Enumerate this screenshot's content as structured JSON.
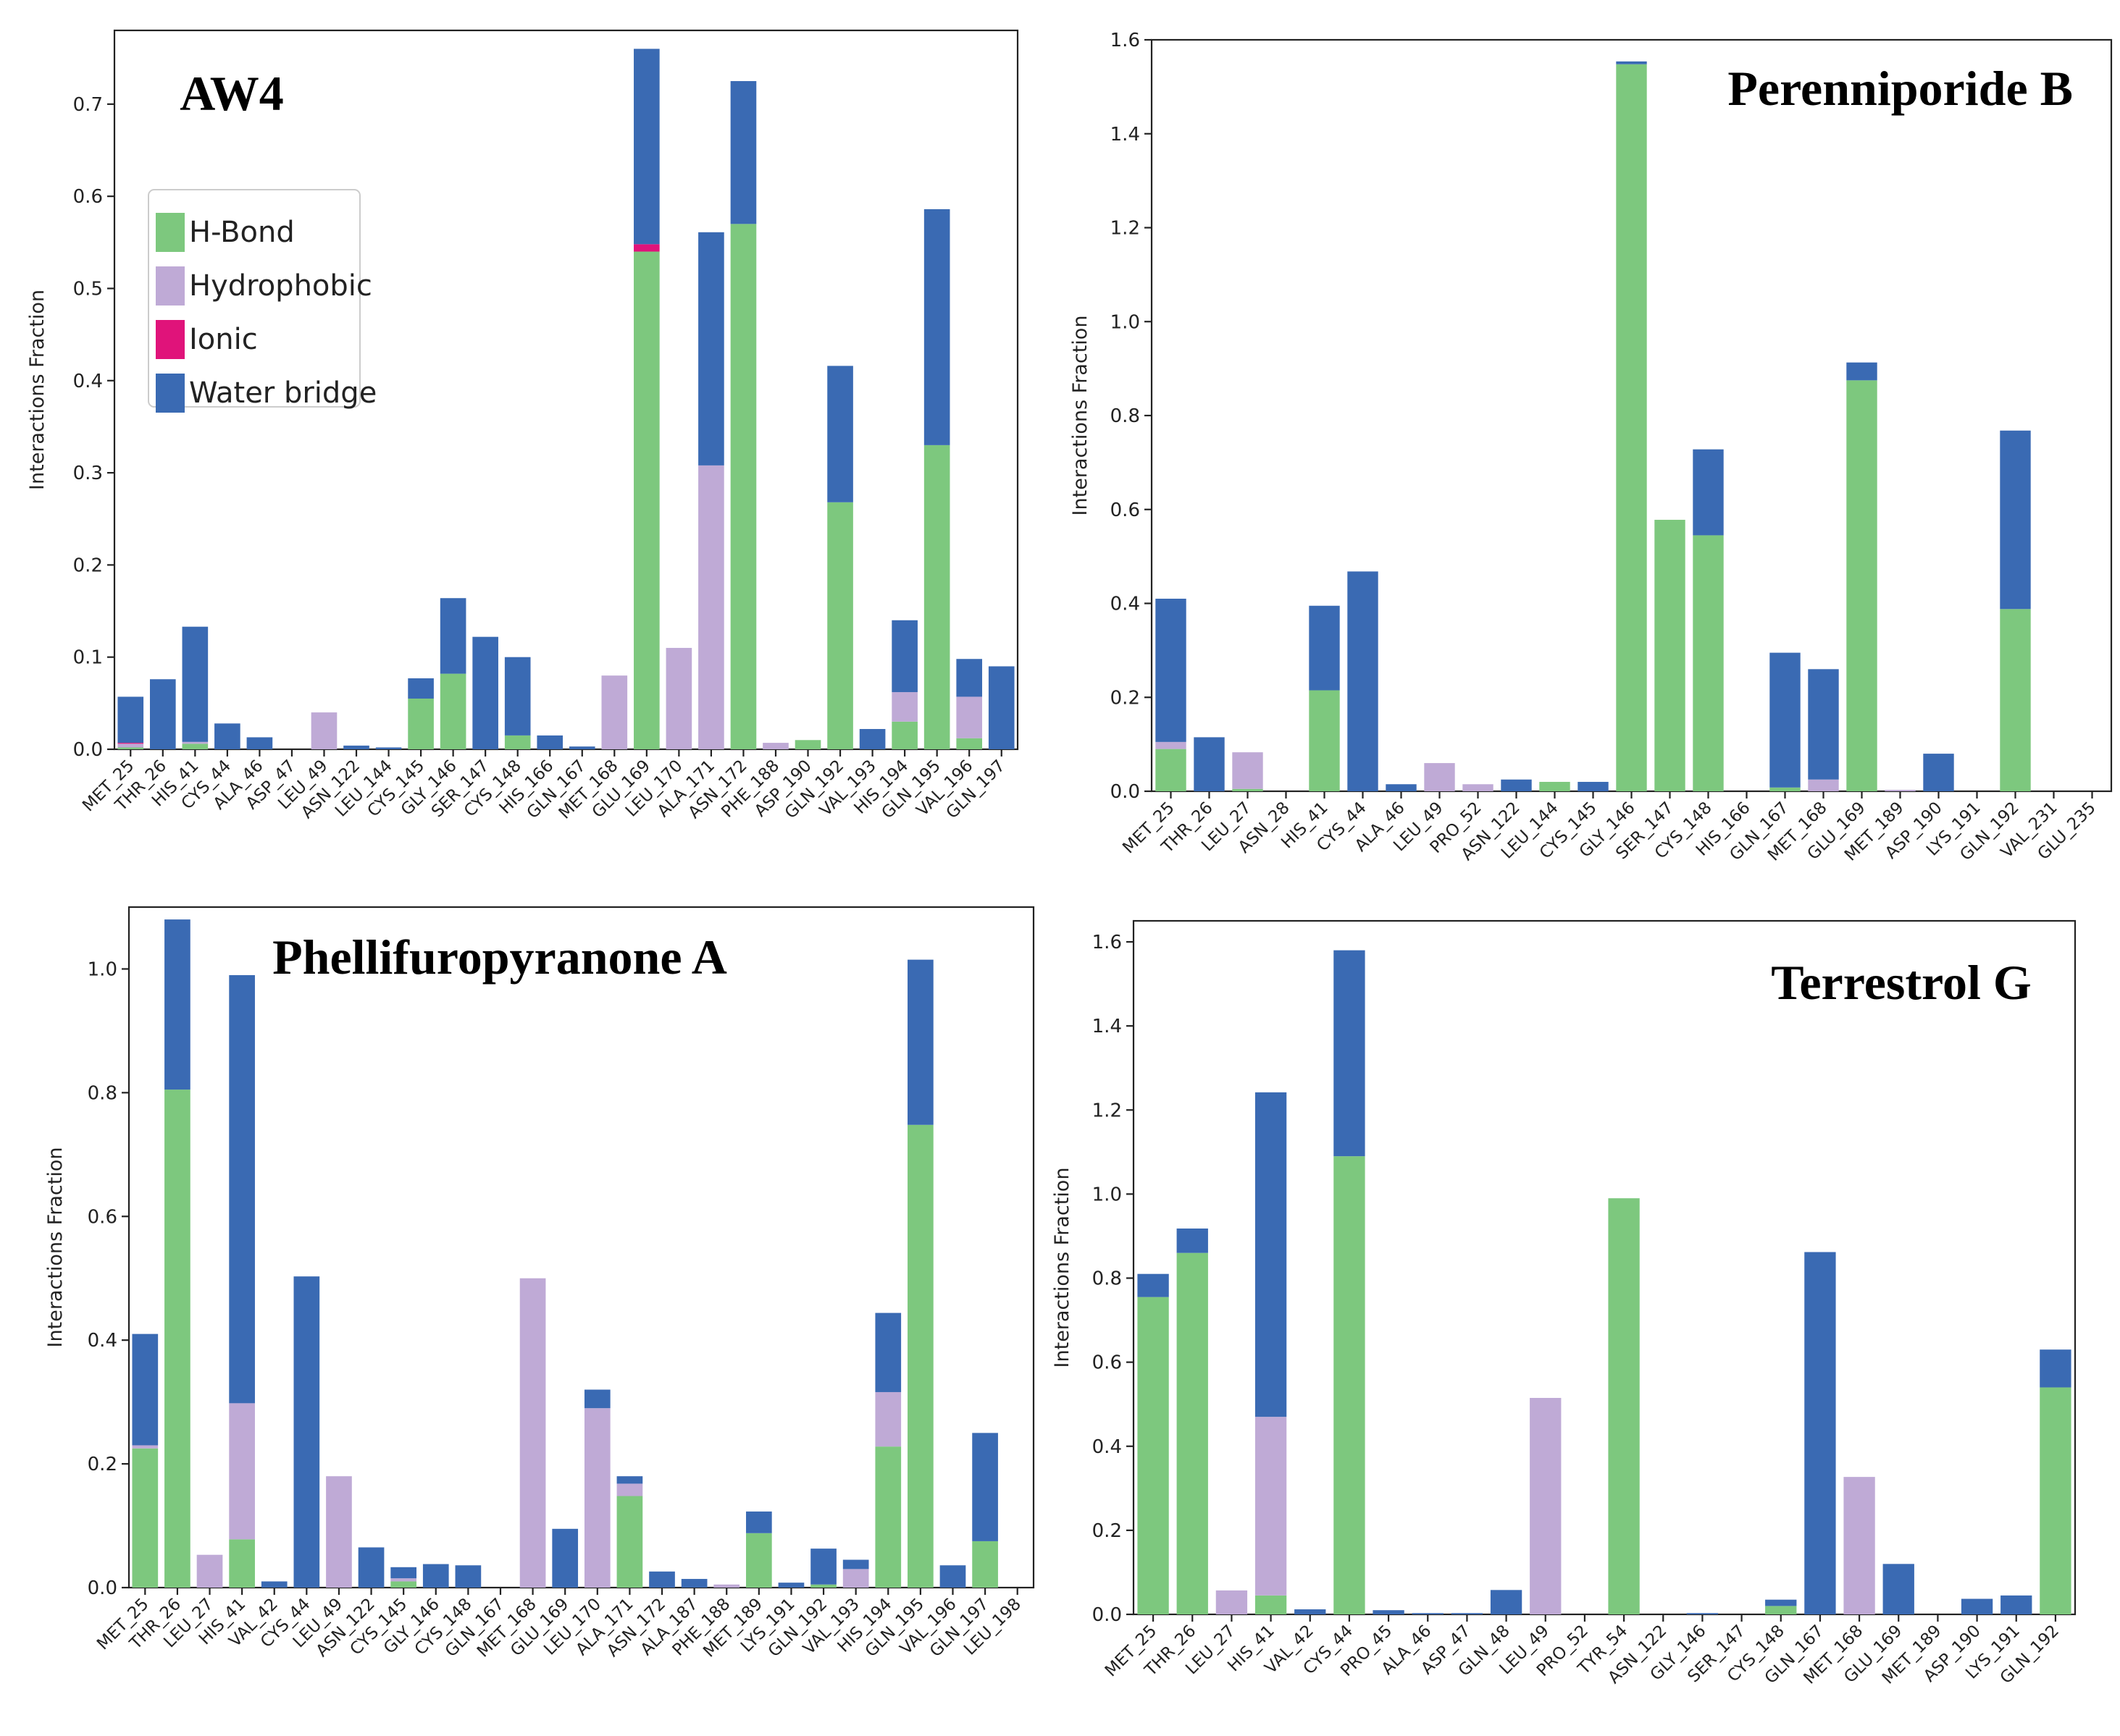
{
  "colors": {
    "hbond": "#7dc87e",
    "hydrophobic": "#bfaad6",
    "ionic": "#e0137a",
    "water": "#3a6ab3"
  },
  "legend": [
    {
      "key": "hbond",
      "label": "H-Bond"
    },
    {
      "key": "hydrophobic",
      "label": "Hydrophobic"
    },
    {
      "key": "ionic",
      "label": "Ionic"
    },
    {
      "key": "water",
      "label": "Water bridge"
    }
  ],
  "chart_data": [
    {
      "type": "bar",
      "stacked": true,
      "title": "AW4",
      "ylabel": "Interactions Fraction",
      "ylim": [
        0,
        0.78
      ],
      "yticks": [
        0.0,
        0.1,
        0.2,
        0.3,
        0.4,
        0.5,
        0.6,
        0.7
      ],
      "ytick_labels": [
        "0.0",
        "0.1",
        "0.2",
        "0.3",
        "0.4",
        "0.5",
        "0.6",
        "0.7"
      ],
      "legend_position": "upper-left",
      "categories": [
        "MET_25",
        "THR_26",
        "HIS_41",
        "CYS_44",
        "ALA_46",
        "ASP_47",
        "LEU_49",
        "ASN_122",
        "LEU_144",
        "CYS_145",
        "GLY_146",
        "SER_147",
        "CYS_148",
        "HIS_166",
        "GLN_167",
        "MET_168",
        "GLU_169",
        "LEU_170",
        "ALA_171",
        "ASN_172",
        "PHE_188",
        "ASP_190",
        "GLN_192",
        "VAL_193",
        "HIS_194",
        "GLN_195",
        "VAL_196",
        "GLN_197"
      ],
      "series": [
        {
          "name": "H-Bond",
          "key": "hbond",
          "values": [
            0.002,
            0,
            0.006,
            0,
            0,
            0,
            0,
            0,
            0,
            0.055,
            0.082,
            0,
            0.015,
            0,
            0,
            0,
            0.54,
            0,
            0,
            0.57,
            0,
            0.01,
            0.268,
            0,
            0.03,
            0.33,
            0.012,
            0
          ]
        },
        {
          "name": "Hydrophobic",
          "key": "hydrophobic",
          "values": [
            0.004,
            0,
            0.002,
            0,
            0,
            0,
            0.04,
            0,
            0,
            0,
            0,
            0,
            0,
            0,
            0,
            0.08,
            0,
            0.11,
            0.308,
            0,
            0.007,
            0,
            0,
            0,
            0.032,
            0,
            0.045,
            0
          ]
        },
        {
          "name": "Ionic",
          "key": "ionic",
          "values": [
            0.001,
            0,
            0,
            0,
            0,
            0,
            0,
            0,
            0,
            0,
            0,
            0,
            0,
            0,
            0,
            0,
            0.008,
            0,
            0,
            0,
            0,
            0,
            0,
            0,
            0,
            0,
            0,
            0
          ]
        },
        {
          "name": "Water bridge",
          "key": "water",
          "values": [
            0.05,
            0.076,
            0.125,
            0.028,
            0.013,
            0,
            0,
            0.004,
            0.002,
            0.022,
            0.082,
            0.122,
            0.085,
            0.015,
            0.003,
            0,
            0.212,
            0,
            0.253,
            0.155,
            0,
            0,
            0.148,
            0.022,
            0.078,
            0.256,
            0.041,
            0.09
          ]
        }
      ]
    },
    {
      "type": "bar",
      "stacked": true,
      "title": "Perenniporide B",
      "ylabel": "Interactions Fraction",
      "ylim": [
        0,
        1.6
      ],
      "yticks": [
        0.0,
        0.2,
        0.4,
        0.6,
        0.8,
        1.0,
        1.2,
        1.4,
        1.6
      ],
      "ytick_labels": [
        "0.0",
        "0.2",
        "0.4",
        "0.6",
        "0.8",
        "1.0",
        "1.2",
        "1.4",
        "1.6"
      ],
      "categories": [
        "MET_25",
        "THR_26",
        "LEU_27",
        "ASN_28",
        "HIS_41",
        "CYS_44",
        "ALA_46",
        "LEU_49",
        "PRO_52",
        "ASN_122",
        "LEU_144",
        "CYS_145",
        "GLY_146",
        "SER_147",
        "CYS_148",
        "HIS_166",
        "GLN_167",
        "MET_168",
        "GLU_169",
        "MET_189",
        "ASP_190",
        "LYS_191",
        "GLN_192",
        "VAL_231",
        "GLU_235"
      ],
      "series": [
        {
          "name": "H-Bond",
          "key": "hbond",
          "values": [
            0.09,
            0,
            0.005,
            0,
            0.215,
            0,
            0,
            0,
            0,
            0,
            0.02,
            0,
            1.548,
            0.578,
            0.545,
            0,
            0.008,
            0,
            0.875,
            0,
            0,
            0,
            0.388,
            0,
            0
          ]
        },
        {
          "name": "Hydrophobic",
          "key": "hydrophobic",
          "values": [
            0.015,
            0,
            0.078,
            0,
            0,
            0,
            0,
            0.06,
            0.015,
            0,
            0,
            0,
            0,
            0,
            0,
            0,
            0,
            0.025,
            0,
            0.003,
            0,
            0,
            0,
            0,
            0
          ]
        },
        {
          "name": "Ionic",
          "key": "ionic",
          "values": [
            0,
            0,
            0,
            0,
            0,
            0,
            0,
            0,
            0,
            0,
            0,
            0,
            0,
            0,
            0,
            0,
            0,
            0,
            0,
            0,
            0,
            0,
            0,
            0,
            0
          ]
        },
        {
          "name": "Water bridge",
          "key": "water",
          "values": [
            0.305,
            0.115,
            0,
            0,
            0.18,
            0.468,
            0.015,
            0,
            0,
            0.025,
            0,
            0.02,
            0.006,
            0,
            0.183,
            0,
            0.287,
            0.235,
            0.038,
            0,
            0.08,
            0,
            0.38,
            0,
            0
          ]
        }
      ]
    },
    {
      "type": "bar",
      "stacked": true,
      "title": "Phellifuropyranone A",
      "ylabel": "Interactions Fraction",
      "ylim": [
        0,
        1.1
      ],
      "yticks": [
        0.0,
        0.2,
        0.4,
        0.6,
        0.8,
        1.0
      ],
      "ytick_labels": [
        "0.0",
        "0.2",
        "0.4",
        "0.6",
        "0.8",
        "1.0"
      ],
      "categories": [
        "MET_25",
        "THR_26",
        "LEU_27",
        "HIS_41",
        "VAL_42",
        "CYS_44",
        "LEU_49",
        "ASN_122",
        "CYS_145",
        "GLY_146",
        "CYS_148",
        "GLN_167",
        "MET_168",
        "GLU_169",
        "LEU_170",
        "ALA_171",
        "ASN_172",
        "ALA_187",
        "PHE_188",
        "MET_189",
        "LYS_191",
        "GLN_192",
        "VAL_193",
        "HIS_194",
        "GLN_195",
        "VAL_196",
        "GLN_197",
        "LEU_198"
      ],
      "series": [
        {
          "name": "H-Bond",
          "key": "hbond",
          "values": [
            0.225,
            0.805,
            0,
            0.078,
            0,
            0,
            0,
            0,
            0.01,
            0,
            0,
            0,
            0,
            0,
            0,
            0.148,
            0,
            0,
            0,
            0.088,
            0,
            0.005,
            0,
            0.228,
            0.748,
            0,
            0.075,
            0
          ]
        },
        {
          "name": "Hydrophobic",
          "key": "hydrophobic",
          "values": [
            0.005,
            0,
            0.053,
            0.22,
            0,
            0,
            0.18,
            0,
            0.005,
            0,
            0,
            0,
            0.5,
            0,
            0.29,
            0.02,
            0,
            0,
            0.005,
            0,
            0,
            0,
            0.03,
            0.088,
            0,
            0,
            0,
            0
          ]
        },
        {
          "name": "Ionic",
          "key": "ionic",
          "values": [
            0,
            0,
            0,
            0,
            0,
            0,
            0,
            0,
            0,
            0,
            0,
            0,
            0,
            0,
            0,
            0,
            0,
            0,
            0,
            0,
            0,
            0,
            0,
            0,
            0,
            0,
            0,
            0
          ]
        },
        {
          "name": "Water bridge",
          "key": "water",
          "values": [
            0.18,
            0.275,
            0,
            0.692,
            0.01,
            0.503,
            0,
            0.065,
            0.018,
            0.038,
            0.036,
            0,
            0,
            0.095,
            0.03,
            0.012,
            0.026,
            0.014,
            0,
            0.035,
            0.008,
            0.058,
            0.015,
            0.128,
            0.267,
            0.036,
            0.175,
            0
          ]
        }
      ]
    },
    {
      "type": "bar",
      "stacked": true,
      "title": "Terrestrol G",
      "ylabel": "Interactions Fraction",
      "ylim": [
        0,
        1.65
      ],
      "yticks": [
        0.0,
        0.2,
        0.4,
        0.6,
        0.8,
        1.0,
        1.2,
        1.4,
        1.6
      ],
      "ytick_labels": [
        "0.0",
        "0.2",
        "0.4",
        "0.6",
        "0.8",
        "1.0",
        "1.2",
        "1.4",
        "1.6"
      ],
      "categories": [
        "MET_25",
        "THR_26",
        "LEU_27",
        "HIS_41",
        "VAL_42",
        "CYS_44",
        "PRO_45",
        "ALA_46",
        "ASP_47",
        "GLN_48",
        "LEU_49",
        "PRO_52",
        "TYR_54",
        "ASN_122",
        "GLY_146",
        "SER_147",
        "CYS_148",
        "GLN_167",
        "MET_168",
        "GLU_169",
        "MET_189",
        "ASP_190",
        "LYS_191",
        "GLN_192"
      ],
      "series": [
        {
          "name": "H-Bond",
          "key": "hbond",
          "values": [
            0.755,
            0.86,
            0,
            0.045,
            0,
            1.09,
            0,
            0,
            0,
            0,
            0,
            0,
            0.99,
            0,
            0,
            0,
            0.02,
            0,
            0,
            0,
            0,
            0,
            0,
            0.54
          ]
        },
        {
          "name": "Hydrophobic",
          "key": "hydrophobic",
          "values": [
            0,
            0,
            0.057,
            0.425,
            0,
            0,
            0,
            0,
            0,
            0,
            0.515,
            0,
            0,
            0,
            0,
            0,
            0,
            0,
            0.327,
            0,
            0,
            0,
            0,
            0
          ]
        },
        {
          "name": "Ionic",
          "key": "ionic",
          "values": [
            0,
            0,
            0,
            0,
            0,
            0,
            0,
            0,
            0,
            0,
            0,
            0,
            0,
            0,
            0,
            0,
            0,
            0,
            0,
            0,
            0,
            0,
            0,
            0
          ]
        },
        {
          "name": "Water bridge",
          "key": "water",
          "values": [
            0.055,
            0.058,
            0,
            0.772,
            0.012,
            0.49,
            0.01,
            0.003,
            0.003,
            0.058,
            0,
            0,
            0,
            0,
            0.003,
            0,
            0.015,
            0.862,
            0,
            0.12,
            0,
            0.037,
            0.045,
            0.09
          ]
        }
      ]
    }
  ]
}
